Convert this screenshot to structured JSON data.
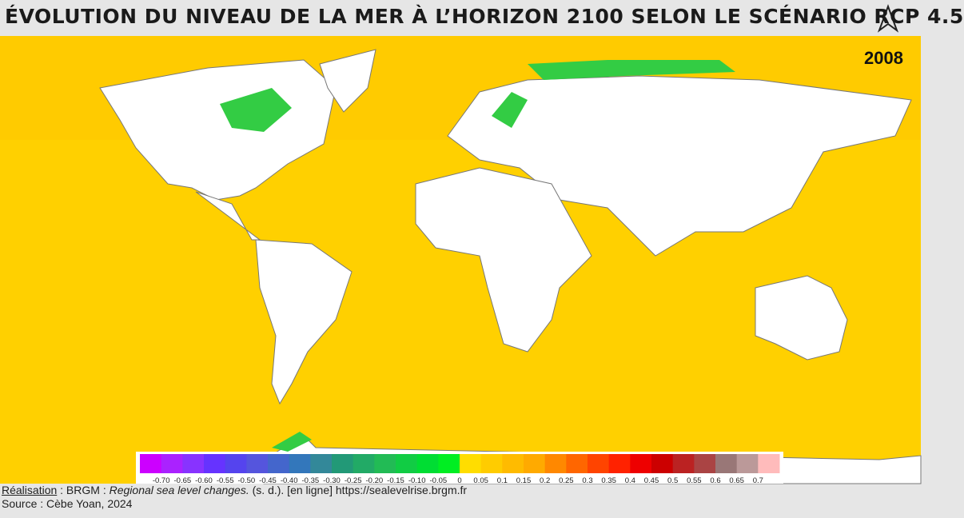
{
  "header": {
    "title": "ÉVOLUTION DU NIVEAU DE LA MER À L’HORIZON 2100 SELON LE SCÉNARIO RCP 4.5",
    "year": "2008"
  },
  "legend": {
    "colors": [
      "#cc00ff",
      "#aa22ff",
      "#8833ff",
      "#6633ff",
      "#5544ee",
      "#5555dd",
      "#4466cc",
      "#3377bb",
      "#338899",
      "#229977",
      "#22aa66",
      "#22bb55",
      "#11cc44",
      "#00dd33",
      "#00ee22",
      "#ffdd00",
      "#ffcc00",
      "#ffbb00",
      "#ffaa00",
      "#ff8800",
      "#ff6600",
      "#ff4400",
      "#ff2200",
      "#ee0000",
      "#cc0000",
      "#bb2222",
      "#aa4444",
      "#997777",
      "#bb9999",
      "#ffbbbb"
    ],
    "ticks": [
      {
        "value": -0.7,
        "label": "-0.70"
      },
      -0.65,
      {
        "value": -0.6,
        "label": "-0.60"
      },
      -0.55,
      {
        "value": -0.5,
        "label": "-0.50"
      },
      -0.45,
      {
        "value": -0.4,
        "label": "-0.40"
      },
      -0.35,
      {
        "value": -0.3,
        "label": "-0.30"
      },
      -0.25,
      {
        "value": -0.2,
        "label": "-0.20"
      },
      -0.15,
      {
        "value": -0.1,
        "label": "-0.10"
      },
      -0.05,
      0,
      0.05,
      0.1,
      0.15,
      0.2,
      0.25,
      0.3,
      0.35,
      0.4,
      0.45,
      0.5,
      0.55,
      0.6,
      0.65,
      0.7
    ]
  },
  "credits": {
    "label": "Réalisation",
    "sep": " : BRGM : ",
    "work": "Regional sea level changes.",
    "rest": " (s. d.). [en ligne] https://sealevelrise.brgm.fr",
    "source": "Source : Cèbe Yoan, 2024"
  }
}
